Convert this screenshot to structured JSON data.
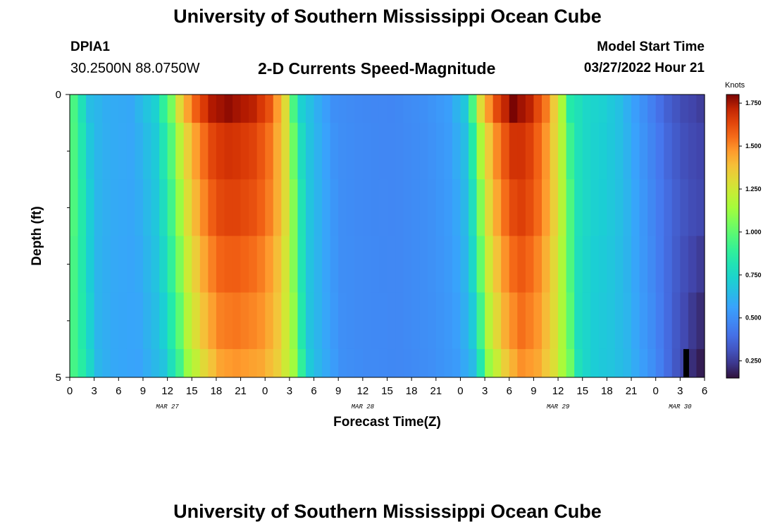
{
  "header": {
    "title": "University of Southern Mississippi Ocean Cube",
    "station_id": "DPIA1",
    "coordinates": "30.2500N  88.0750W",
    "subtitle": "2-D Currents Speed-Magnitude",
    "model_start_label": "Model Start Time",
    "model_start_value": "03/27/2022 Hour 21"
  },
  "footer": {
    "title": "University of Southern Mississippi Ocean Cube"
  },
  "chart_data": {
    "type": "heatmap",
    "title": "2-D Currents Speed-Magnitude",
    "xlabel": "Forecast Time(Z)",
    "ylabel": "Depth (ft)",
    "x_range_hours": [
      0,
      78
    ],
    "x_tick_step_hours": 3,
    "x_tick_labels": [
      "0",
      "3",
      "6",
      "9",
      "12",
      "15",
      "18",
      "21",
      "0",
      "3",
      "6",
      "9",
      "12",
      "15",
      "18",
      "21",
      "0",
      "3",
      "6",
      "9",
      "12",
      "15",
      "18",
      "21",
      "0",
      "3",
      "6"
    ],
    "date_labels": [
      {
        "text": "MAR 27",
        "hour": 12
      },
      {
        "text": "MAR 28",
        "hour": 36
      },
      {
        "text": "MAR 29",
        "hour": 60
      },
      {
        "text": "MAR 30",
        "hour": 75
      }
    ],
    "y_range_ft": [
      0,
      5
    ],
    "y_tick_labels": [
      {
        "value": 0,
        "text": "0"
      },
      {
        "value": 5,
        "text": "5"
      }
    ],
    "y_minor_ticks": [
      1,
      2,
      3,
      4
    ],
    "colorbar": {
      "unit": "Knots",
      "min": 0.15,
      "max": 1.8,
      "ticks": [
        {
          "value": 1.75,
          "text": "1.750"
        },
        {
          "value": 1.5,
          "text": "1.500"
        },
        {
          "value": 1.25,
          "text": "1.250"
        },
        {
          "value": 1.0,
          "text": "1.000"
        },
        {
          "value": 0.75,
          "text": "0.750"
        },
        {
          "value": 0.5,
          "text": "0.500"
        },
        {
          "value": 0.25,
          "text": "0.250"
        }
      ]
    },
    "depth_rows_ft": [
      0.5,
      1.5,
      2.5,
      3.5,
      4.5,
      5.0
    ],
    "rows": [
      {
        "depth_ft": 0.5,
        "offset_hours": -0.5,
        "scale": 1.0,
        "peak_boost": 0.03
      },
      {
        "depth_ft": 1.5,
        "offset_hours": -0.2,
        "scale": 0.95,
        "peak_boost": 0.0
      },
      {
        "depth_ft": 2.5,
        "offset_hours": 0.0,
        "scale": 0.92,
        "peak_boost": 0.0
      },
      {
        "depth_ft": 3.5,
        "offset_hours": 0.1,
        "scale": 0.87,
        "peak_boost": 0.0
      },
      {
        "depth_ft": 4.5,
        "offset_hours": 0.3,
        "scale": 0.83,
        "peak_boost": 0.0
      },
      {
        "depth_ft": 5.0,
        "offset_hours": 0.6,
        "scale": 0.8,
        "peak_boost": -0.02
      }
    ],
    "surface_profile_knots": [
      [
        0,
        1.05
      ],
      [
        1,
        0.95
      ],
      [
        2,
        0.8
      ],
      [
        3,
        0.65
      ],
      [
        5,
        0.6
      ],
      [
        8,
        0.58
      ],
      [
        11,
        0.72
      ],
      [
        13,
        1.05
      ],
      [
        14,
        1.3
      ],
      [
        16,
        1.55
      ],
      [
        18,
        1.72
      ],
      [
        20,
        1.75
      ],
      [
        23,
        1.7
      ],
      [
        25,
        1.58
      ],
      [
        27,
        1.3
      ],
      [
        28,
        0.95
      ],
      [
        29,
        0.72
      ],
      [
        31,
        0.6
      ],
      [
        33,
        0.5
      ],
      [
        36,
        0.48
      ],
      [
        40,
        0.47
      ],
      [
        44,
        0.5
      ],
      [
        47,
        0.55
      ],
      [
        49,
        0.68
      ],
      [
        50,
        0.95
      ],
      [
        51,
        1.3
      ],
      [
        53,
        1.6
      ],
      [
        55,
        1.77
      ],
      [
        57,
        1.7
      ],
      [
        59,
        1.5
      ],
      [
        61,
        1.15
      ],
      [
        62,
        0.85
      ],
      [
        64,
        0.75
      ],
      [
        66,
        0.72
      ],
      [
        68,
        0.66
      ],
      [
        70,
        0.55
      ],
      [
        72,
        0.45
      ],
      [
        74,
        0.35
      ],
      [
        76,
        0.28
      ],
      [
        78,
        0.25
      ]
    ]
  }
}
